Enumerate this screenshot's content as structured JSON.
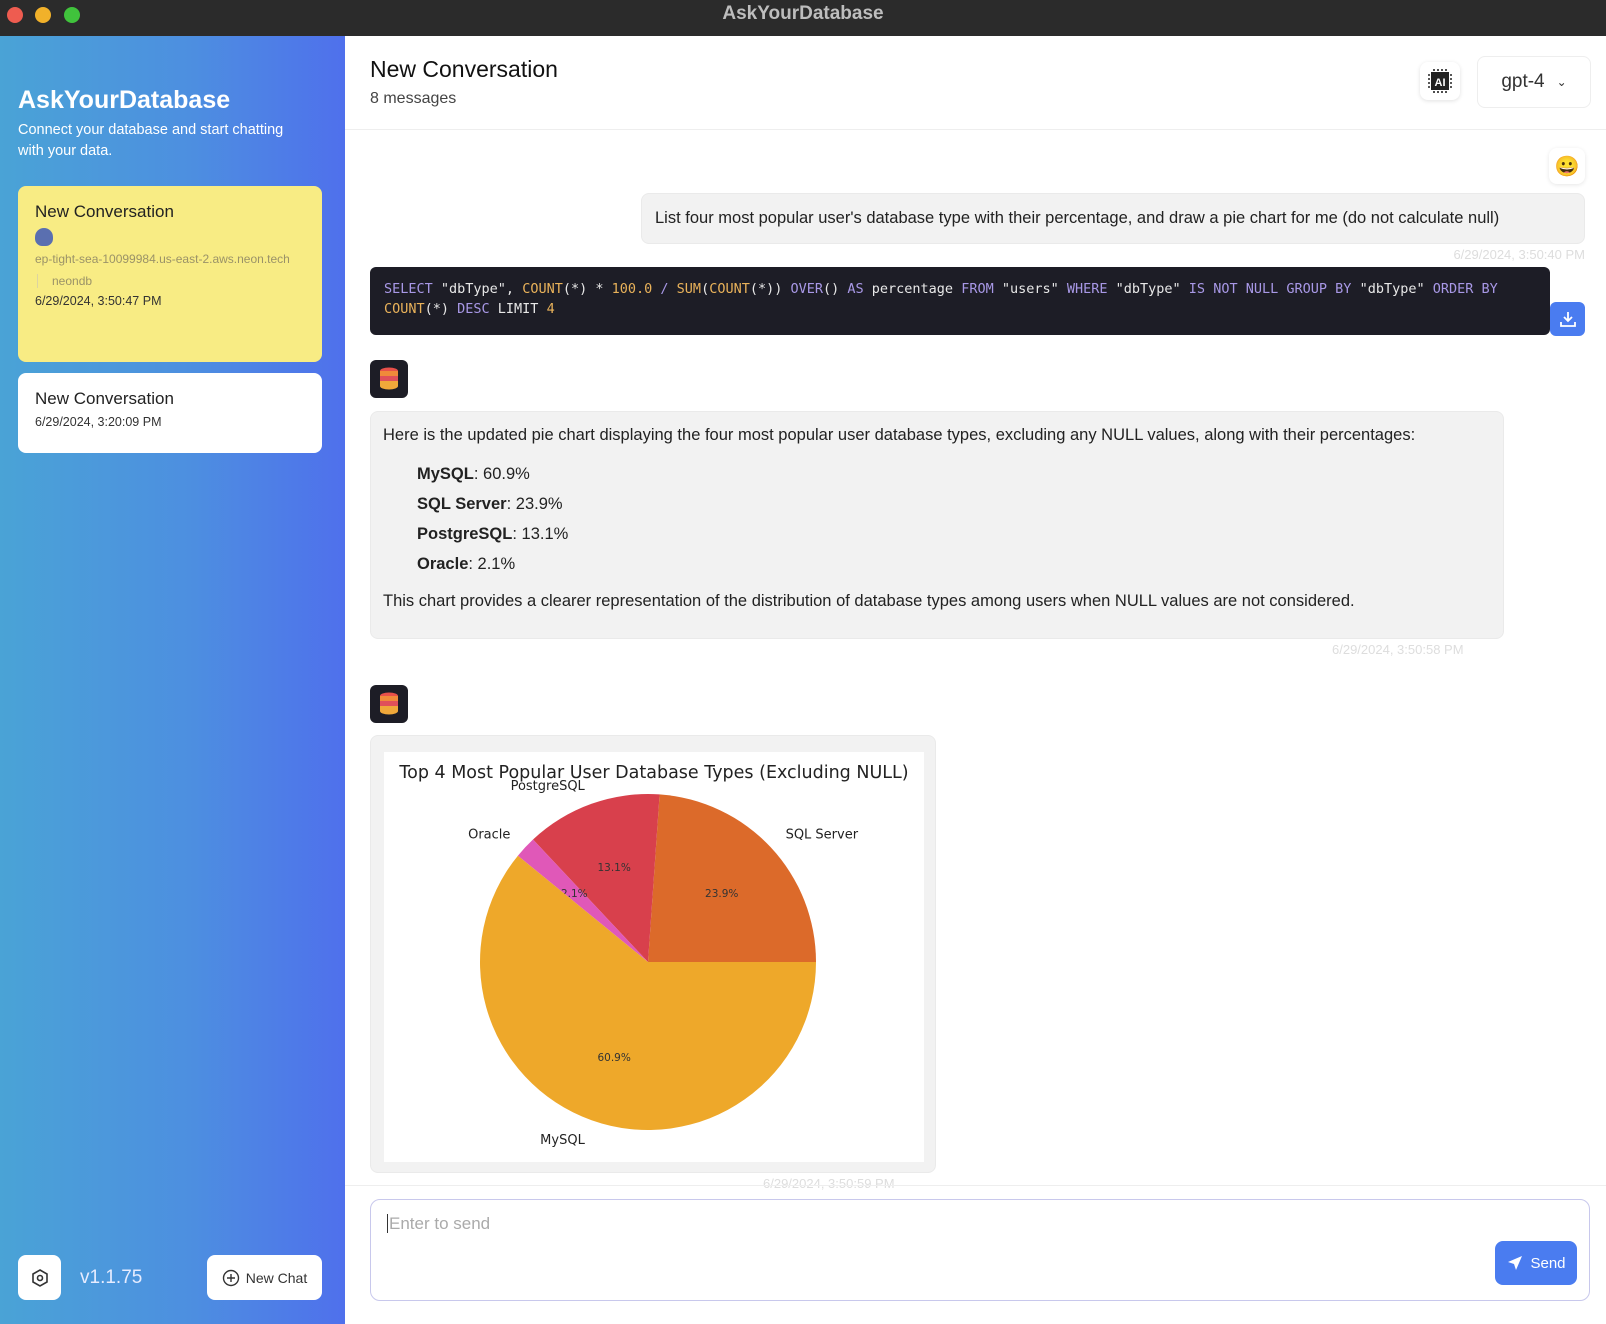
{
  "window": {
    "title": "AskYourDatabase"
  },
  "sidebar": {
    "title": "AskYourDatabase",
    "subtitle": "Connect your database and start chatting with your data.",
    "conversations": [
      {
        "title": "New Conversation",
        "host": "ep-tight-sea-10099984.us-east-2.aws.neon.tech",
        "database": "neondb",
        "timestamp": "6/29/2024, 3:50:47 PM",
        "active": true
      },
      {
        "title": "New Conversation",
        "timestamp": "6/29/2024, 3:20:09 PM",
        "active": false
      }
    ],
    "version": "v1.1.75",
    "new_chat_label": "New Chat"
  },
  "header": {
    "title": "New Conversation",
    "subtitle": "8 messages",
    "model": "gpt-4"
  },
  "messages": {
    "user": {
      "text": "List four most popular user's database type with their percentage, and draw a pie chart for me (do not calculate null)",
      "timestamp": "6/29/2024, 3:50:40 PM"
    },
    "sql": "SELECT \"dbType\", COUNT(*) * 100.0 / SUM(COUNT(*)) OVER() AS percentage FROM \"users\" WHERE \"dbType\" IS NOT NULL GROUP BY \"dbType\" ORDER BY COUNT(*) DESC LIMIT 4",
    "reply": {
      "intro": "Here is the updated pie chart displaying the four most popular user database types, excluding any NULL values, along with their percentages:",
      "items": [
        {
          "name": "MySQL",
          "value": ": 60.9%"
        },
        {
          "name": "SQL Server",
          "value": ": 23.9%"
        },
        {
          "name": "PostgreSQL",
          "value": ": 13.1%"
        },
        {
          "name": "Oracle",
          "value": ": 2.1%"
        }
      ],
      "outro": "This chart provides a clearer representation of the distribution of database types among users when NULL values are not considered.",
      "timestamp": "6/29/2024, 3:50:58 PM"
    },
    "chart_timestamp": "6/29/2024, 3:50:59 PM"
  },
  "input": {
    "placeholder": "Enter to send",
    "send_label": "Send"
  },
  "colors": {
    "accent": "#4a7cf0",
    "active_card": "#f8ec84",
    "code_bg": "#1d1d26"
  },
  "chart_data": {
    "type": "pie",
    "title": "Top 4 Most Popular User Database Types (Excluding NULL)",
    "categories": [
      "SQL Server",
      "PostgreSQL",
      "Oracle",
      "MySQL"
    ],
    "values": [
      23.9,
      13.1,
      2.1,
      60.9
    ],
    "labels": [
      "23.9%",
      "13.1%",
      "2.1%",
      "60.9%"
    ],
    "colors": [
      "#dc6a2a",
      "#d8404c",
      "#e058b8",
      "#eea82a"
    ]
  }
}
